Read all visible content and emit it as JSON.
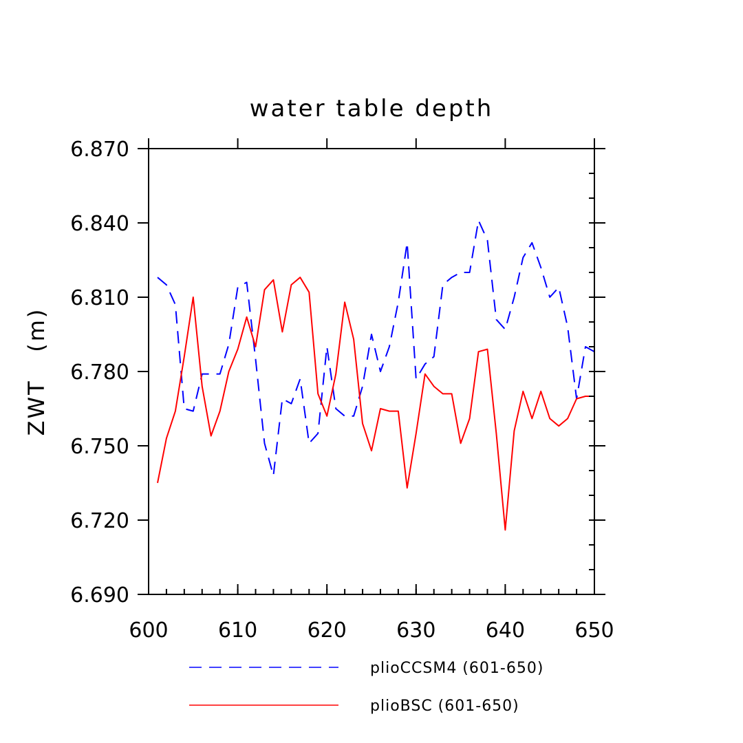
{
  "chart_data": {
    "type": "line",
    "title": "water table depth",
    "xlabel": "",
    "ylabel": "ZWT   (m)",
    "xlim": [
      600,
      650
    ],
    "ylim": [
      6.69,
      6.87
    ],
    "x_ticks": [
      "600",
      "610",
      "620",
      "630",
      "640",
      "650"
    ],
    "y_ticks": [
      "6.690",
      "6.720",
      "6.750",
      "6.780",
      "6.810",
      "6.840",
      "6.870"
    ],
    "grid": false,
    "legend_position": "bottom",
    "series": [
      {
        "name": "plioCCSM4 (601-650)",
        "color": "#0000ff",
        "style": "dashed",
        "x": [
          601,
          602,
          603,
          604,
          605,
          606,
          607,
          608,
          609,
          610,
          611,
          612,
          613,
          614,
          615,
          616,
          617,
          618,
          619,
          620,
          621,
          622,
          623,
          624,
          625,
          626,
          627,
          628,
          629,
          630,
          631,
          632,
          633,
          634,
          635,
          636,
          637,
          638,
          639,
          640,
          641,
          642,
          643,
          644,
          645,
          646,
          647,
          648,
          649,
          650
        ],
        "values": [
          6.818,
          6.815,
          6.807,
          6.765,
          6.764,
          6.779,
          6.779,
          6.779,
          6.791,
          6.814,
          6.816,
          6.785,
          6.751,
          6.738,
          6.769,
          6.767,
          6.777,
          6.751,
          6.755,
          6.79,
          6.765,
          6.762,
          6.762,
          6.774,
          6.795,
          6.78,
          6.79,
          6.808,
          6.832,
          6.777,
          6.783,
          6.786,
          6.815,
          6.818,
          6.82,
          6.82,
          6.841,
          6.833,
          6.801,
          6.797,
          6.81,
          6.826,
          6.832,
          6.822,
          6.81,
          6.814,
          6.798,
          6.769,
          6.79,
          6.788
        ]
      },
      {
        "name": "plioBSC (601-650)",
        "color": "#ff0000",
        "style": "solid",
        "x": [
          601,
          602,
          603,
          604,
          605,
          606,
          607,
          608,
          609,
          610,
          611,
          612,
          613,
          614,
          615,
          616,
          617,
          618,
          619,
          620,
          621,
          622,
          623,
          624,
          625,
          626,
          627,
          628,
          629,
          630,
          631,
          632,
          633,
          634,
          635,
          636,
          637,
          638,
          639,
          640,
          641,
          642,
          643,
          644,
          645,
          646,
          647,
          648,
          649,
          650
        ],
        "values": [
          6.735,
          6.753,
          6.764,
          6.786,
          6.81,
          6.774,
          6.754,
          6.764,
          6.78,
          6.789,
          6.802,
          6.79,
          6.813,
          6.817,
          6.796,
          6.815,
          6.818,
          6.812,
          6.771,
          6.762,
          6.779,
          6.808,
          6.793,
          6.759,
          6.748,
          6.765,
          6.764,
          6.764,
          6.733,
          6.755,
          6.779,
          6.774,
          6.771,
          6.771,
          6.751,
          6.761,
          6.788,
          6.789,
          6.755,
          6.716,
          6.756,
          6.772,
          6.761,
          6.772,
          6.761,
          6.758,
          6.761,
          6.769,
          6.77,
          6.77
        ]
      }
    ]
  }
}
